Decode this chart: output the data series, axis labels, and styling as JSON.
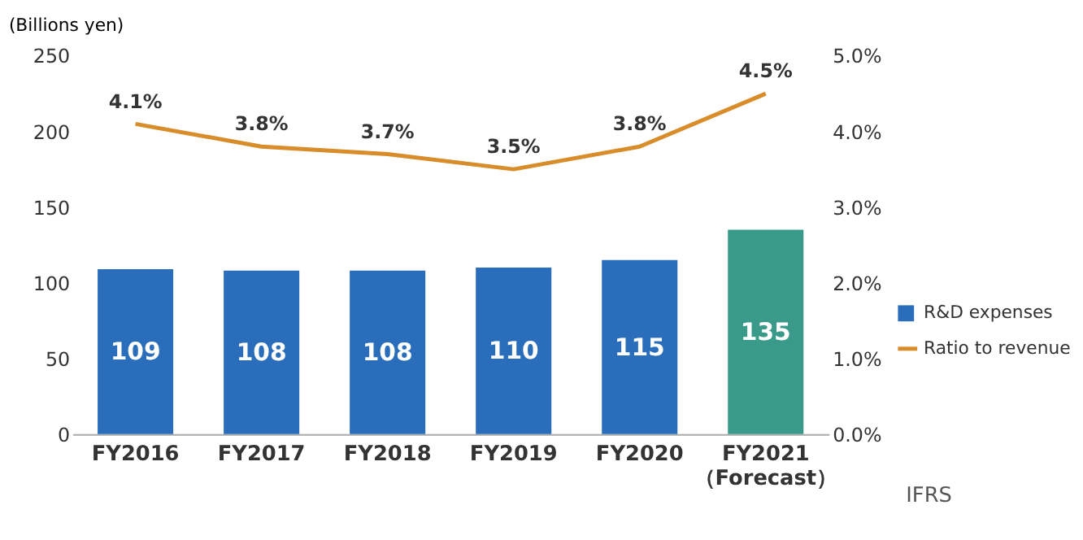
{
  "chart_data": {
    "type": "bar",
    "ylabel": "(Billions  yen)",
    "categories": [
      "FY2016",
      "FY2017",
      "FY2018",
      "FY2019",
      "FY2020",
      "FY2021\n（Forecast）"
    ],
    "series": [
      {
        "name": "R&D expenses",
        "color": "#2a6ebb",
        "colors": [
          "#2a6ebb",
          "#2a6ebb",
          "#2a6ebb",
          "#2a6ebb",
          "#2a6ebb",
          "#3a9a8a"
        ],
        "values": [
          109,
          108,
          108,
          110,
          115,
          135
        ],
        "value_labels": [
          "109",
          "108",
          "108",
          "110",
          "115",
          "135"
        ]
      },
      {
        "name": "Ratio to revenue",
        "type": "line",
        "axis": "y2",
        "color": "#d88c2a",
        "values": [
          4.1,
          3.8,
          3.7,
          3.5,
          3.8,
          4.5
        ],
        "value_labels": [
          "4.1%",
          "3.8%",
          "3.7%",
          "3.5%",
          "3.8%",
          "4.5%"
        ]
      }
    ],
    "ylim": [
      0,
      250
    ],
    "yticks": [
      0,
      50,
      100,
      150,
      200,
      250
    ],
    "y2lim": [
      0,
      5
    ],
    "y2ticks": [
      {
        "value": 0,
        "label": "0.0%"
      },
      {
        "value": 1,
        "label": "1.0%"
      },
      {
        "value": 2,
        "label": "2.0%"
      },
      {
        "value": 3,
        "label": "3.0%"
      },
      {
        "value": 4,
        "label": "4.0%"
      },
      {
        "value": 5,
        "label": "5.0%"
      }
    ],
    "grid": false,
    "legend": "right",
    "marker": "none",
    "line_style": "solid",
    "annotations": [
      "IFRS"
    ]
  }
}
